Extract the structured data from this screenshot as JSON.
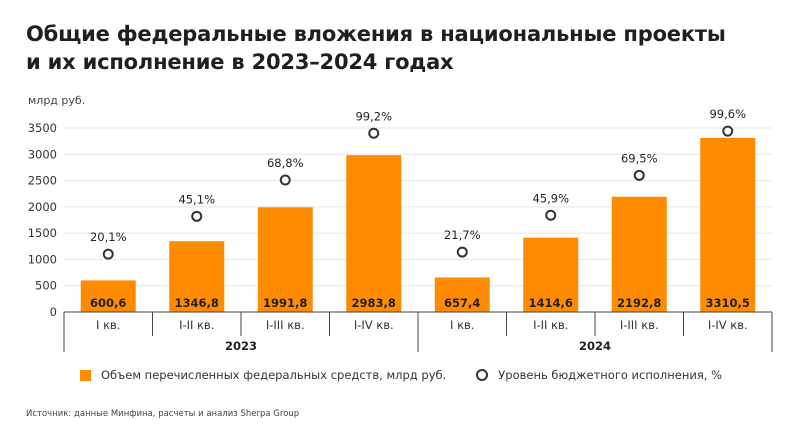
{
  "title": {
    "line1": "Общие федеральные вложения в национальные проекты",
    "line2": "и их исполнение в 2023–2024 годах"
  },
  "source": "Источник: данные Минфина, расчеты и анализ Sherpa Group",
  "colors": {
    "bar": "#ff8c00",
    "bar_label": "#1f1f1f",
    "marker_stroke": "#333333",
    "grid": "#e6e6e6",
    "axis": "#444444"
  },
  "chart_data": {
    "type": "bar",
    "ylabel": "млрд руб.",
    "ylim": [
      0,
      3500
    ],
    "yticks": [
      0,
      500,
      1000,
      1500,
      2000,
      2500,
      3000,
      3500
    ],
    "grid": true,
    "legend_position": "bottom",
    "categories": [
      "I кв.",
      "I-II кв.",
      "I-III кв.",
      "I-IV кв.",
      "I кв.",
      "I-II кв.",
      "I-III кв.",
      "I-IV кв."
    ],
    "groups": [
      {
        "label": "2023",
        "categories": [
          "I кв.",
          "I-II кв.",
          "I-III кв.",
          "I-IV кв."
        ]
      },
      {
        "label": "2024",
        "categories": [
          "I кв.",
          "I-II кв.",
          "I-III кв.",
          "I-IV кв."
        ]
      }
    ],
    "series": [
      {
        "name": "Объем перечисленных федеральных средств, млрд руб.",
        "kind": "bar",
        "values": [
          600.6,
          1346.8,
          1991.8,
          2983.8,
          657.4,
          1414.6,
          2192.8,
          3310.5
        ],
        "labels": [
          "600,6",
          "1346,8",
          "1991,8",
          "2983,8",
          "657,4",
          "1414,6",
          "2192,8",
          "3310,5"
        ]
      },
      {
        "name": "Уровень бюджетного исполнения, %",
        "kind": "marker",
        "values": [
          20.1,
          45.1,
          68.8,
          99.2,
          21.7,
          45.9,
          69.5,
          99.6
        ],
        "labels": [
          "20,1%",
          "45,1%",
          "68,8%",
          "99,2%",
          "21,7%",
          "45,9%",
          "69,5%",
          "99,6%"
        ],
        "marker_y": [
          1100,
          1820,
          2510,
          3400,
          1140,
          1840,
          2600,
          3440
        ]
      }
    ]
  }
}
